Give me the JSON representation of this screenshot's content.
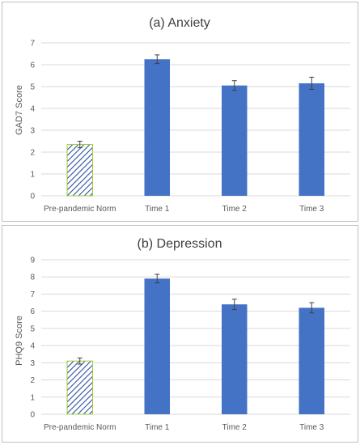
{
  "colors": {
    "bar": "#4472C4",
    "norm_hatch": "#2F4F9E",
    "norm_border": "#9ACD32",
    "grid": "#D9D9D9",
    "error_bar": "#404040"
  },
  "chart_data": [
    {
      "type": "bar",
      "title": "(a) Anxiety",
      "ylabel": "GAD7 Score",
      "xlabel": "",
      "ylim": [
        0,
        7
      ],
      "yticks": [
        "0",
        "1",
        "2",
        "3",
        "4",
        "5",
        "6",
        "7"
      ],
      "categories": [
        "Pre-pandemic Norm",
        "Time 1",
        "Time 2",
        "Time 3"
      ],
      "values": [
        2.35,
        6.25,
        5.05,
        5.15
      ],
      "errors": [
        0.15,
        0.2,
        0.22,
        0.28
      ],
      "hatched": [
        true,
        false,
        false,
        false
      ],
      "grid": true,
      "legend": "none"
    },
    {
      "type": "bar",
      "title": "(b) Depression",
      "ylabel": "PHQ9 Score",
      "xlabel": "",
      "ylim": [
        0,
        9
      ],
      "yticks": [
        "0",
        "1",
        "2",
        "3",
        "4",
        "5",
        "6",
        "7",
        "8",
        "9"
      ],
      "categories": [
        "Pre-pandemic Norm",
        "Time 1",
        "Time 2",
        "Time 3"
      ],
      "values": [
        3.1,
        7.9,
        6.4,
        6.2
      ],
      "errors": [
        0.18,
        0.25,
        0.3,
        0.3
      ],
      "hatched": [
        true,
        false,
        false,
        false
      ],
      "grid": true,
      "legend": "none"
    }
  ]
}
